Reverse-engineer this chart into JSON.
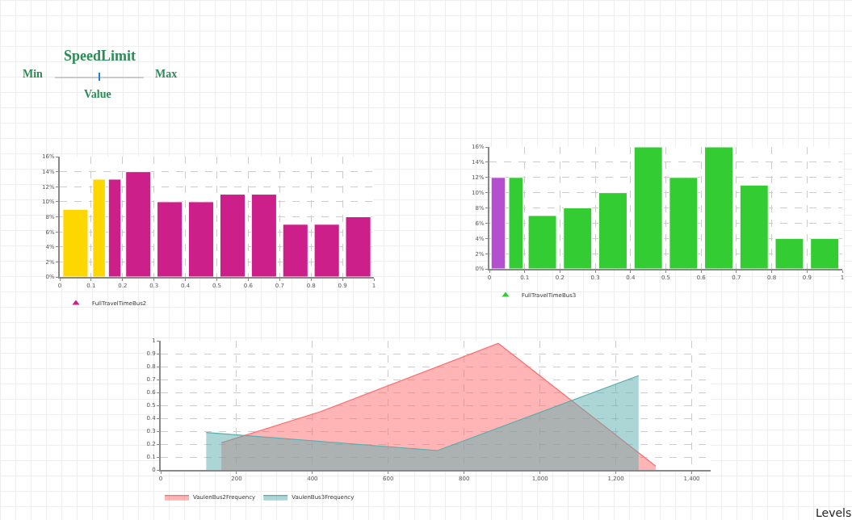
{
  "chart_data": [
    {
      "type": "other",
      "title": "SpeedLimit",
      "annotations": [
        "Min",
        "Max",
        "Value",
        "Levels"
      ]
    },
    {
      "type": "histogram",
      "bins": [
        0,
        0.1,
        0.15,
        0.2,
        0.3,
        0.4,
        0.5,
        0.6,
        0.7,
        0.8,
        0.9,
        1
      ],
      "xlim": [
        0,
        1
      ],
      "xticks": [
        0,
        0.1,
        0.2,
        0.3,
        0.4,
        0.5,
        0.6,
        0.7,
        0.8,
        0.9,
        1
      ],
      "ylim": [
        0,
        16
      ],
      "yticks": [
        {
          "value": 0,
          "label": "0%"
        },
        {
          "value": 2,
          "label": "2%"
        },
        {
          "value": 4,
          "label": "4%"
        },
        {
          "value": 6,
          "label": "6%"
        },
        {
          "value": 8,
          "label": "8%"
        },
        {
          "value": 10,
          "label": "10%"
        },
        {
          "value": 12,
          "label": "12%"
        },
        {
          "value": 14,
          "label": "14%"
        },
        {
          "value": 16,
          "label": "16%"
        }
      ],
      "grid": true,
      "legend": "bottom left",
      "series": [
        {
          "name": "FullTravelTimeBus2",
          "color": "#cc1f8a",
          "colors": [
            "#ffd700",
            "#ffd700",
            "#cc1f8a",
            "#cc1f8a",
            "#cc1f8a",
            "#cc1f8a",
            "#cc1f8a",
            "#cc1f8a",
            "#cc1f8a",
            "#cc1f8a",
            "#cc1f8a"
          ],
          "values": [
            9,
            13,
            13,
            14,
            10,
            10,
            11,
            11,
            7,
            7,
            8
          ]
        }
      ]
    },
    {
      "type": "histogram",
      "bins": [
        0,
        0.05,
        0.1,
        0.2,
        0.3,
        0.4,
        0.5,
        0.6,
        0.7,
        0.8,
        0.9,
        1
      ],
      "xlim": [
        0,
        1
      ],
      "xticks": [
        0,
        0.1,
        0.2,
        0.3,
        0.4,
        0.5,
        0.6,
        0.7,
        0.8,
        0.9,
        1
      ],
      "ylim": [
        0,
        16
      ],
      "yticks": [
        {
          "value": 0,
          "label": "0%"
        },
        {
          "value": 2,
          "label": "2%"
        },
        {
          "value": 4,
          "label": "4%"
        },
        {
          "value": 6,
          "label": "6%"
        },
        {
          "value": 8,
          "label": "8%"
        },
        {
          "value": 10,
          "label": "10%"
        },
        {
          "value": 12,
          "label": "12%"
        },
        {
          "value": 14,
          "label": "14%"
        },
        {
          "value": 16,
          "label": "16%"
        }
      ],
      "grid": true,
      "legend": "bottom left",
      "series": [
        {
          "name": "FullTravelTimeBus3",
          "color": "#33cc33",
          "colors": [
            "#b44fd0",
            "#33cc33",
            "#33cc33",
            "#33cc33",
            "#33cc33",
            "#33cc33",
            "#33cc33",
            "#33cc33",
            "#33cc33",
            "#33cc33",
            "#33cc33"
          ],
          "values": [
            12,
            12,
            7,
            8,
            10,
            16,
            12,
            16,
            11,
            4,
            4
          ]
        }
      ]
    },
    {
      "type": "area",
      "xlim": [
        0,
        1450
      ],
      "xticks": [
        0,
        200,
        400,
        600,
        800,
        {
          "value": 1000,
          "label": "1,000"
        },
        {
          "value": 1200,
          "label": "1,200"
        },
        {
          "value": 1400,
          "label": "1,400"
        }
      ],
      "ylim": [
        0,
        1
      ],
      "yticks": [
        0,
        0.1,
        0.2,
        0.3,
        0.4,
        0.5,
        0.6,
        0.7,
        0.8,
        0.9,
        1
      ],
      "grid": true,
      "legend": "bottom left",
      "marker": "none",
      "series": [
        {
          "name": "VaulenBus2Frequency",
          "color": "#ff6b6b",
          "x": [
            160,
            420,
            890,
            1305
          ],
          "values": [
            0.21,
            0.45,
            0.98,
            0.03
          ]
        },
        {
          "name": "VaulenBus3Frequency",
          "color": "#5aadad",
          "x": [
            120,
            730,
            1260
          ],
          "values": [
            0.29,
            0.15,
            0.73
          ]
        }
      ]
    }
  ]
}
